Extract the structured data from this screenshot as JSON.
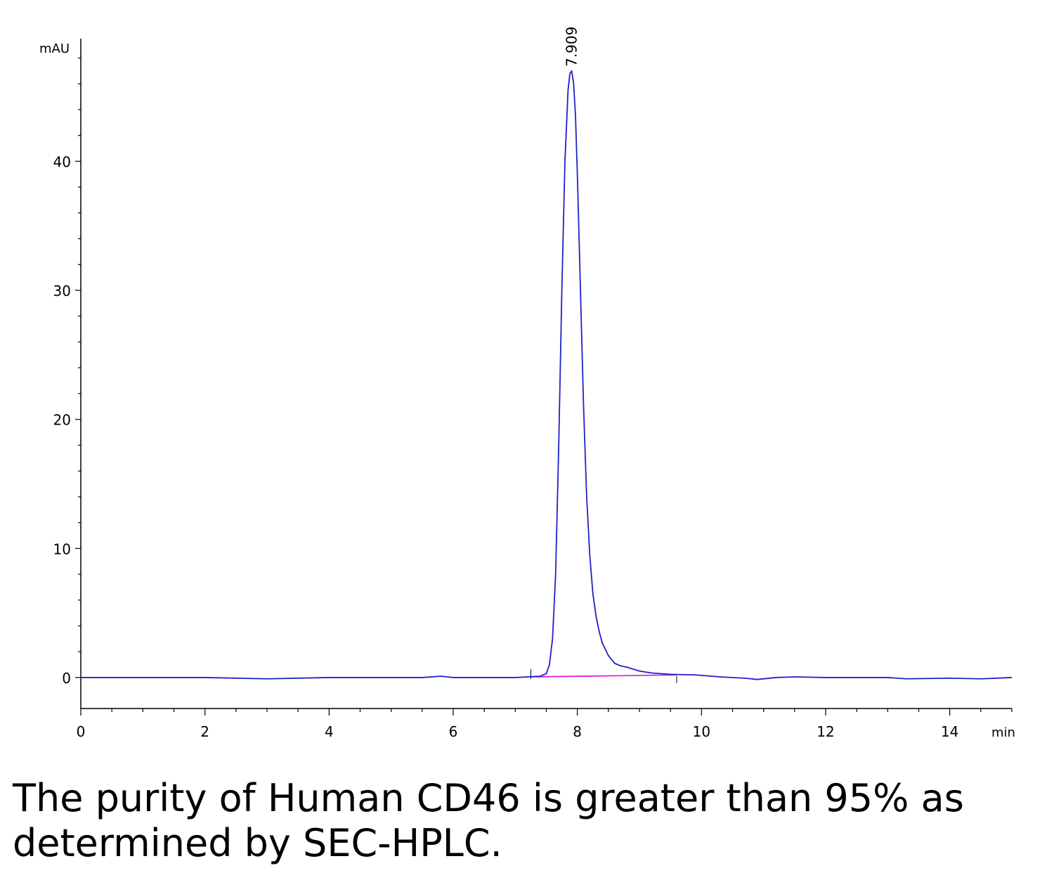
{
  "chart_data": {
    "type": "line",
    "xlabel": "min",
    "ylabel": "mAU",
    "xlim": [
      0,
      15
    ],
    "ylim": [
      -2.4,
      49.5
    ],
    "x_ticks": [
      "0",
      "2",
      "4",
      "6",
      "8",
      "10",
      "12",
      "14"
    ],
    "y_ticks": [
      "0",
      "10",
      "20",
      "30",
      "40"
    ],
    "grid": false,
    "legend": "none",
    "peak_label": "7.909",
    "colors": {
      "signal": "#2020c8",
      "baseline": "#e020e0",
      "axis": "#000000"
    },
    "series": [
      {
        "x": [
          0,
          2,
          3,
          4,
          5.5,
          5.8,
          6,
          7,
          7.2,
          7.4,
          7.5,
          7.55,
          7.6,
          7.65,
          7.7,
          7.75,
          7.8,
          7.85,
          7.88,
          7.909,
          7.94,
          7.97,
          8.0,
          8.05,
          8.1,
          8.15,
          8.2,
          8.25,
          8.3,
          8.35,
          8.4,
          8.5,
          8.6,
          8.7,
          8.8,
          9.0,
          9.2,
          9.5,
          9.9,
          10.3,
          10.7,
          10.9,
          11.2,
          11.5,
          12,
          13,
          13.3,
          14,
          14.5,
          15
        ],
        "y": [
          0,
          0,
          -0.1,
          0,
          0,
          0.1,
          0,
          0,
          0.05,
          0.1,
          0.3,
          1.0,
          3.0,
          8.0,
          18.0,
          30.0,
          40.0,
          45.5,
          46.8,
          47.0,
          46.0,
          43.5,
          39.0,
          30.0,
          21.0,
          14.0,
          9.5,
          6.5,
          4.8,
          3.6,
          2.7,
          1.7,
          1.1,
          0.9,
          0.8,
          0.5,
          0.35,
          0.25,
          0.2,
          0.05,
          -0.05,
          -0.15,
          0,
          0.05,
          0,
          0,
          -0.1,
          -0.05,
          -0.1,
          0
        ]
      },
      {
        "x": [
          7.25,
          9.6
        ],
        "y": [
          0.05,
          0.2
        ]
      }
    ]
  },
  "caption": "The purity of Human CD46 is greater than 95% as determined by SEC-HPLC."
}
